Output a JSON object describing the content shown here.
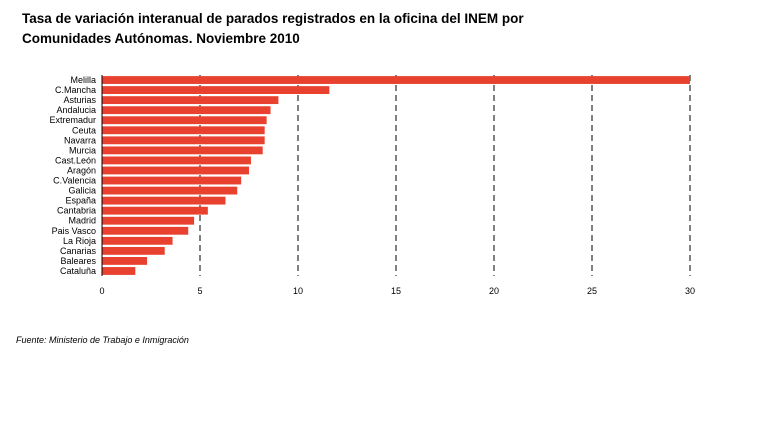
{
  "title_line1": "Tasa de variación interanual de parados registrados en la oficina del INEM por",
  "title_line2": "Comunidades Autónomas. Noviembre 2010",
  "source": "Fuente: Ministerio de Trabajo e Inmigración",
  "chart_data": {
    "type": "bar",
    "orientation": "horizontal",
    "title": "Tasa de variación interanual de parados registrados en la oficina del INEM por Comunidades Autónomas. Noviembre 2010",
    "categories": [
      "Melilla",
      "C.Mancha",
      "Asturias",
      "Andalucia",
      "Extremadur",
      "Ceuta",
      "Navarra",
      "Murcia",
      "Cast.León",
      "Aragón",
      "C.Valencia",
      "Galicia",
      "España",
      "Cantabria",
      "Madrid",
      "Pais Vasco",
      "La Rioja",
      "Canarias",
      "Baleares",
      "Cataluña"
    ],
    "values": [
      30.0,
      11.6,
      9.0,
      8.6,
      8.4,
      8.3,
      8.3,
      8.2,
      7.6,
      7.5,
      7.1,
      6.9,
      6.3,
      5.4,
      4.7,
      4.4,
      3.6,
      3.2,
      2.3,
      1.7
    ],
    "xlim": [
      0,
      30
    ],
    "xticks": [
      0,
      5,
      10,
      15,
      20,
      25,
      30
    ],
    "grid": "vertical dashed",
    "color": "#e8412f"
  }
}
